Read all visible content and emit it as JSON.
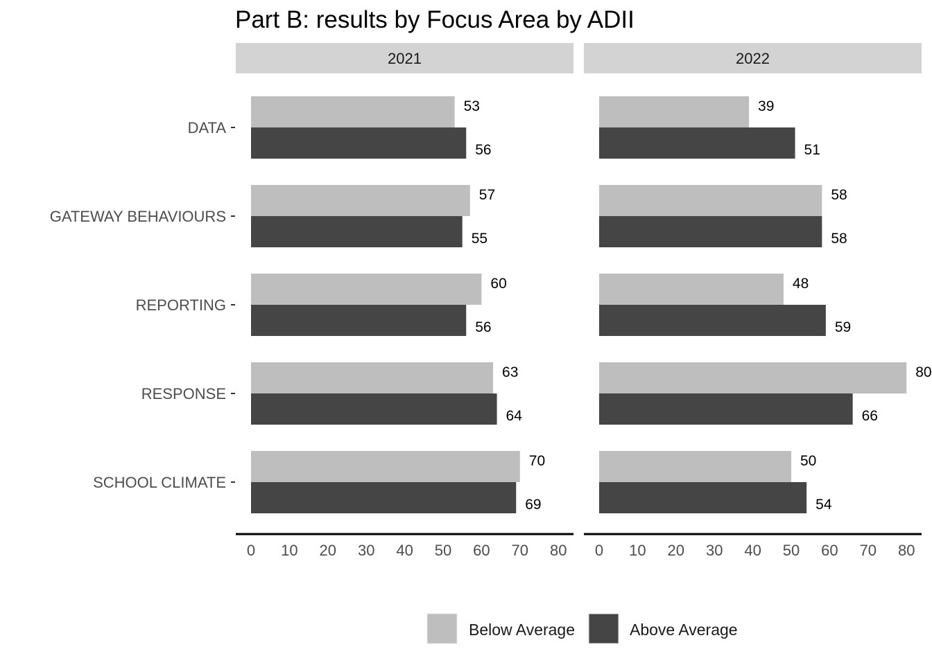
{
  "chart_data": {
    "type": "bar",
    "orientation": "horizontal",
    "title": "Part B: results by Focus Area by ADII",
    "categories": [
      "DATA",
      "GATEWAY BEHAVIOURS",
      "REPORTING",
      "RESPONSE",
      "SCHOOL CLIMATE"
    ],
    "xlim": [
      0,
      80
    ],
    "x_ticks": [
      0,
      10,
      20,
      30,
      40,
      50,
      60,
      70,
      80
    ],
    "grid": false,
    "legend_position": "bottom",
    "panels": [
      {
        "label": "2021",
        "series": [
          {
            "name": "Below Average",
            "values": [
              53,
              57,
              60,
              63,
              70
            ]
          },
          {
            "name": "Above Average",
            "values": [
              56,
              55,
              56,
              64,
              69
            ]
          }
        ]
      },
      {
        "label": "2022",
        "series": [
          {
            "name": "Below Average",
            "values": [
              39,
              58,
              48,
              80,
              50
            ]
          },
          {
            "name": "Above Average",
            "values": [
              51,
              58,
              59,
              66,
              54
            ]
          }
        ]
      }
    ],
    "colors": {
      "Below Average": "#bebebe",
      "Above Average": "#454545",
      "strip": "#d3d3d3",
      "axis": "#000000"
    }
  }
}
